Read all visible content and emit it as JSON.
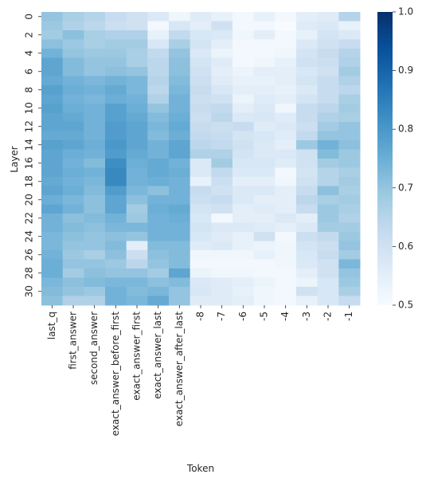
{
  "chart_data": {
    "type": "heatmap",
    "title": "",
    "xlabel": "Token",
    "ylabel": "Layer",
    "x_categories": [
      "last_q",
      "first_answer",
      "second_answer",
      "exact_answer_before_first",
      "exact_answer_first",
      "exact_answer_last",
      "exact_answer_after_last",
      "-8",
      "-7",
      "-6",
      "-5",
      "-4",
      "-3",
      "-2",
      "-1"
    ],
    "y_categories": [
      "0",
      "1",
      "2",
      "3",
      "4",
      "5",
      "6",
      "7",
      "8",
      "9",
      "10",
      "11",
      "12",
      "13",
      "14",
      "15",
      "16",
      "17",
      "18",
      "19",
      "20",
      "21",
      "22",
      "23",
      "24",
      "25",
      "26",
      "27",
      "28",
      "29",
      "30",
      "31"
    ],
    "y_tick_labels": [
      "0",
      "2",
      "4",
      "6",
      "8",
      "10",
      "12",
      "14",
      "16",
      "18",
      "20",
      "22",
      "24",
      "26",
      "28",
      "30"
    ],
    "values": [
      [
        0.7,
        0.67,
        0.65,
        0.62,
        0.6,
        0.57,
        0.52,
        0.56,
        0.54,
        0.51,
        0.54,
        0.51,
        0.55,
        0.56,
        0.65
      ],
      [
        0.69,
        0.66,
        0.64,
        0.61,
        0.6,
        0.51,
        0.58,
        0.55,
        0.6,
        0.51,
        0.51,
        0.5,
        0.56,
        0.57,
        0.54
      ],
      [
        0.68,
        0.71,
        0.67,
        0.66,
        0.66,
        0.54,
        0.63,
        0.58,
        0.57,
        0.52,
        0.55,
        0.51,
        0.54,
        0.59,
        0.57
      ],
      [
        0.71,
        0.69,
        0.67,
        0.68,
        0.68,
        0.58,
        0.67,
        0.59,
        0.55,
        0.51,
        0.51,
        0.51,
        0.57,
        0.6,
        0.62
      ],
      [
        0.74,
        0.7,
        0.69,
        0.69,
        0.67,
        0.63,
        0.7,
        0.57,
        0.53,
        0.51,
        0.51,
        0.52,
        0.59,
        0.62,
        0.65
      ],
      [
        0.77,
        0.72,
        0.7,
        0.7,
        0.67,
        0.64,
        0.71,
        0.59,
        0.56,
        0.51,
        0.52,
        0.54,
        0.6,
        0.61,
        0.66
      ],
      [
        0.77,
        0.72,
        0.7,
        0.71,
        0.7,
        0.64,
        0.71,
        0.6,
        0.55,
        0.53,
        0.55,
        0.55,
        0.58,
        0.6,
        0.68
      ],
      [
        0.76,
        0.74,
        0.73,
        0.74,
        0.73,
        0.65,
        0.72,
        0.61,
        0.56,
        0.54,
        0.54,
        0.55,
        0.59,
        0.62,
        0.66
      ],
      [
        0.78,
        0.75,
        0.74,
        0.76,
        0.73,
        0.64,
        0.73,
        0.62,
        0.58,
        0.55,
        0.55,
        0.54,
        0.57,
        0.62,
        0.64
      ],
      [
        0.77,
        0.74,
        0.73,
        0.75,
        0.74,
        0.66,
        0.74,
        0.61,
        0.6,
        0.53,
        0.56,
        0.55,
        0.59,
        0.62,
        0.67
      ],
      [
        0.78,
        0.75,
        0.74,
        0.78,
        0.75,
        0.7,
        0.74,
        0.62,
        0.63,
        0.55,
        0.57,
        0.52,
        0.62,
        0.64,
        0.68
      ],
      [
        0.77,
        0.76,
        0.74,
        0.78,
        0.76,
        0.72,
        0.75,
        0.61,
        0.64,
        0.57,
        0.58,
        0.56,
        0.62,
        0.66,
        0.67
      ],
      [
        0.77,
        0.77,
        0.74,
        0.79,
        0.77,
        0.73,
        0.76,
        0.62,
        0.61,
        0.62,
        0.56,
        0.57,
        0.61,
        0.68,
        0.7
      ],
      [
        0.76,
        0.76,
        0.74,
        0.79,
        0.77,
        0.72,
        0.75,
        0.63,
        0.62,
        0.59,
        0.58,
        0.56,
        0.63,
        0.7,
        0.7
      ],
      [
        0.78,
        0.77,
        0.75,
        0.8,
        0.77,
        0.74,
        0.77,
        0.64,
        0.63,
        0.6,
        0.57,
        0.55,
        0.69,
        0.74,
        0.71
      ],
      [
        0.77,
        0.75,
        0.74,
        0.79,
        0.76,
        0.74,
        0.77,
        0.66,
        0.66,
        0.59,
        0.57,
        0.57,
        0.6,
        0.72,
        0.69
      ],
      [
        0.77,
        0.74,
        0.72,
        0.82,
        0.75,
        0.76,
        0.74,
        0.57,
        0.68,
        0.58,
        0.58,
        0.56,
        0.6,
        0.68,
        0.69
      ],
      [
        0.77,
        0.75,
        0.74,
        0.83,
        0.74,
        0.76,
        0.75,
        0.57,
        0.63,
        0.57,
        0.57,
        0.51,
        0.59,
        0.65,
        0.67
      ],
      [
        0.76,
        0.74,
        0.73,
        0.83,
        0.74,
        0.75,
        0.74,
        0.54,
        0.61,
        0.55,
        0.55,
        0.52,
        0.6,
        0.65,
        0.68
      ],
      [
        0.77,
        0.75,
        0.72,
        0.79,
        0.73,
        0.71,
        0.74,
        0.62,
        0.6,
        0.57,
        0.57,
        0.55,
        0.62,
        0.71,
        0.67
      ],
      [
        0.75,
        0.73,
        0.71,
        0.77,
        0.71,
        0.74,
        0.74,
        0.61,
        0.62,
        0.57,
        0.55,
        0.55,
        0.64,
        0.67,
        0.68
      ],
      [
        0.77,
        0.74,
        0.71,
        0.77,
        0.68,
        0.75,
        0.76,
        0.59,
        0.6,
        0.55,
        0.56,
        0.55,
        0.62,
        0.69,
        0.67
      ],
      [
        0.74,
        0.71,
        0.72,
        0.74,
        0.69,
        0.74,
        0.75,
        0.58,
        0.51,
        0.55,
        0.55,
        0.57,
        0.55,
        0.69,
        0.66
      ],
      [
        0.74,
        0.72,
        0.71,
        0.73,
        0.73,
        0.74,
        0.74,
        0.59,
        0.57,
        0.57,
        0.56,
        0.55,
        0.57,
        0.68,
        0.68
      ],
      [
        0.73,
        0.71,
        0.7,
        0.71,
        0.7,
        0.74,
        0.74,
        0.58,
        0.56,
        0.54,
        0.6,
        0.51,
        0.61,
        0.63,
        0.69
      ],
      [
        0.73,
        0.7,
        0.7,
        0.72,
        0.55,
        0.72,
        0.72,
        0.56,
        0.57,
        0.54,
        0.53,
        0.52,
        0.59,
        0.61,
        0.7
      ],
      [
        0.74,
        0.69,
        0.67,
        0.71,
        0.61,
        0.71,
        0.72,
        0.52,
        0.52,
        0.52,
        0.54,
        0.52,
        0.58,
        0.62,
        0.68
      ],
      [
        0.75,
        0.7,
        0.7,
        0.69,
        0.64,
        0.7,
        0.72,
        0.51,
        0.51,
        0.51,
        0.51,
        0.52,
        0.57,
        0.6,
        0.73
      ],
      [
        0.75,
        0.68,
        0.71,
        0.7,
        0.7,
        0.68,
        0.77,
        0.53,
        0.52,
        0.52,
        0.51,
        0.51,
        0.55,
        0.6,
        0.7
      ],
      [
        0.73,
        0.71,
        0.72,
        0.73,
        0.73,
        0.71,
        0.72,
        0.57,
        0.56,
        0.55,
        0.53,
        0.51,
        0.53,
        0.58,
        0.69
      ],
      [
        0.72,
        0.7,
        0.69,
        0.74,
        0.72,
        0.73,
        0.7,
        0.58,
        0.56,
        0.54,
        0.52,
        0.51,
        0.6,
        0.58,
        0.67
      ],
      [
        0.71,
        0.66,
        0.66,
        0.74,
        0.73,
        0.76,
        0.7,
        0.56,
        0.56,
        0.55,
        0.52,
        0.51,
        0.54,
        0.58,
        0.62
      ]
    ],
    "colorbar": {
      "min": 0.5,
      "max": 1.0,
      "ticks": [
        "0.5",
        "0.6",
        "0.7",
        "0.8",
        "0.9",
        "1.0"
      ],
      "colormap": "Blues"
    },
    "colors": {
      "blues_scale": [
        "#f7fbff",
        "#deebf7",
        "#c6dbef",
        "#9ecae1",
        "#6baed6",
        "#4292c6",
        "#2171b5",
        "#08519c",
        "#08306b"
      ],
      "text": "#262626",
      "axis": "#262626"
    }
  }
}
